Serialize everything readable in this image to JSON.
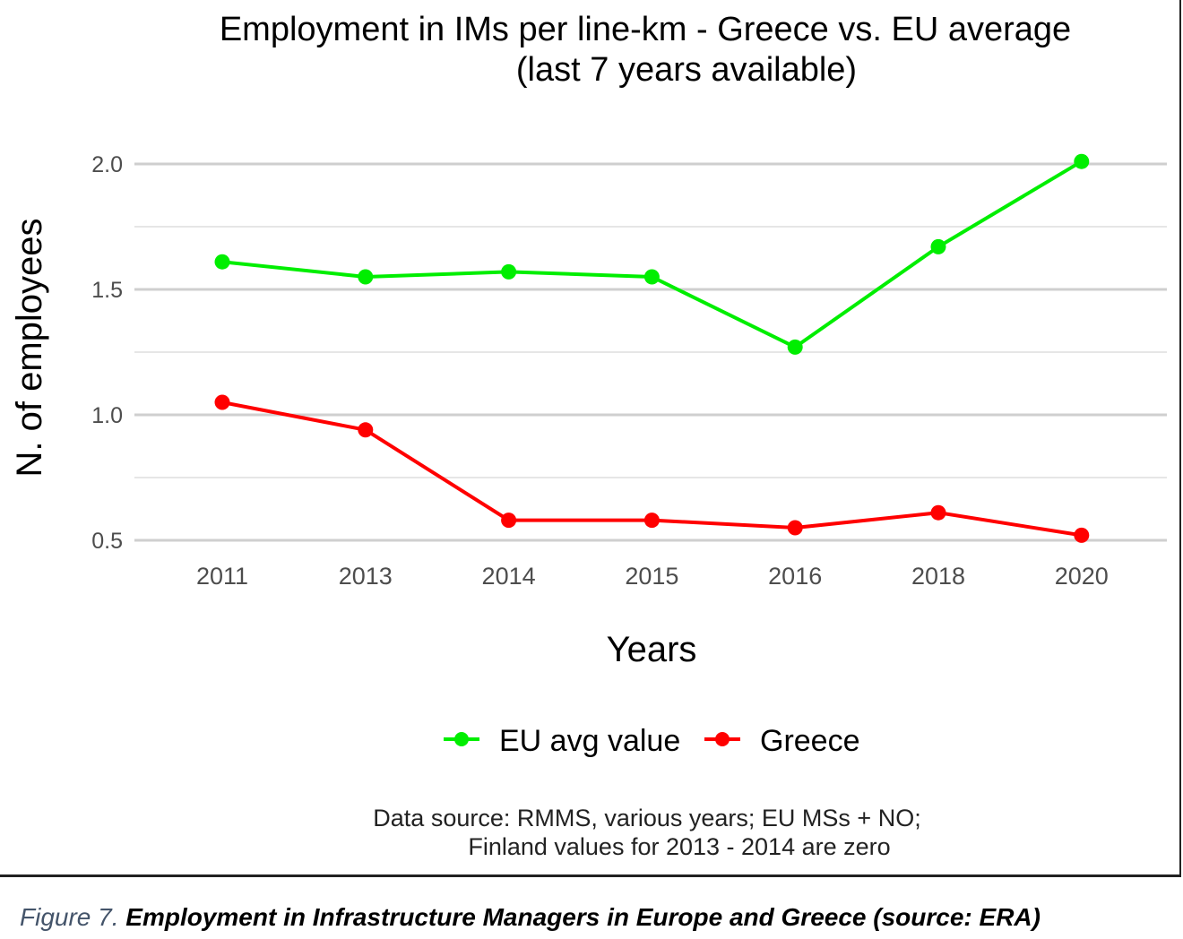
{
  "chart_data": {
    "type": "line",
    "title": "Employment in IMs per line-km - Greece vs. EU average",
    "subtitle": "(last 7 years available)",
    "xlabel": "Years",
    "ylabel": "N. of employees",
    "categories": [
      "2011",
      "2013",
      "2014",
      "2015",
      "2016",
      "2018",
      "2020"
    ],
    "yticks": [
      "0.5",
      "1.0",
      "1.5",
      "2.0"
    ],
    "ylim": [
      0.5,
      2.0
    ],
    "grid": true,
    "legend_position": "bottom",
    "series": [
      {
        "name": "EU avg value",
        "color": "#00ee00",
        "values": [
          1.61,
          1.55,
          1.57,
          1.55,
          1.27,
          1.67,
          2.01
        ]
      },
      {
        "name": "Greece",
        "color": "#ff0000",
        "values": [
          1.05,
          0.94,
          0.58,
          0.58,
          0.55,
          0.61,
          0.52
        ]
      }
    ],
    "note_line1": "Data source: RMMS, various years; EU MSs + NO;",
    "note_line2": "Finland values for 2013 - 2014 are zero"
  },
  "caption": {
    "label": "Figure 7.",
    "text": " Employment in Infrastructure Managers in Europe and Greece (source: ERA)"
  }
}
